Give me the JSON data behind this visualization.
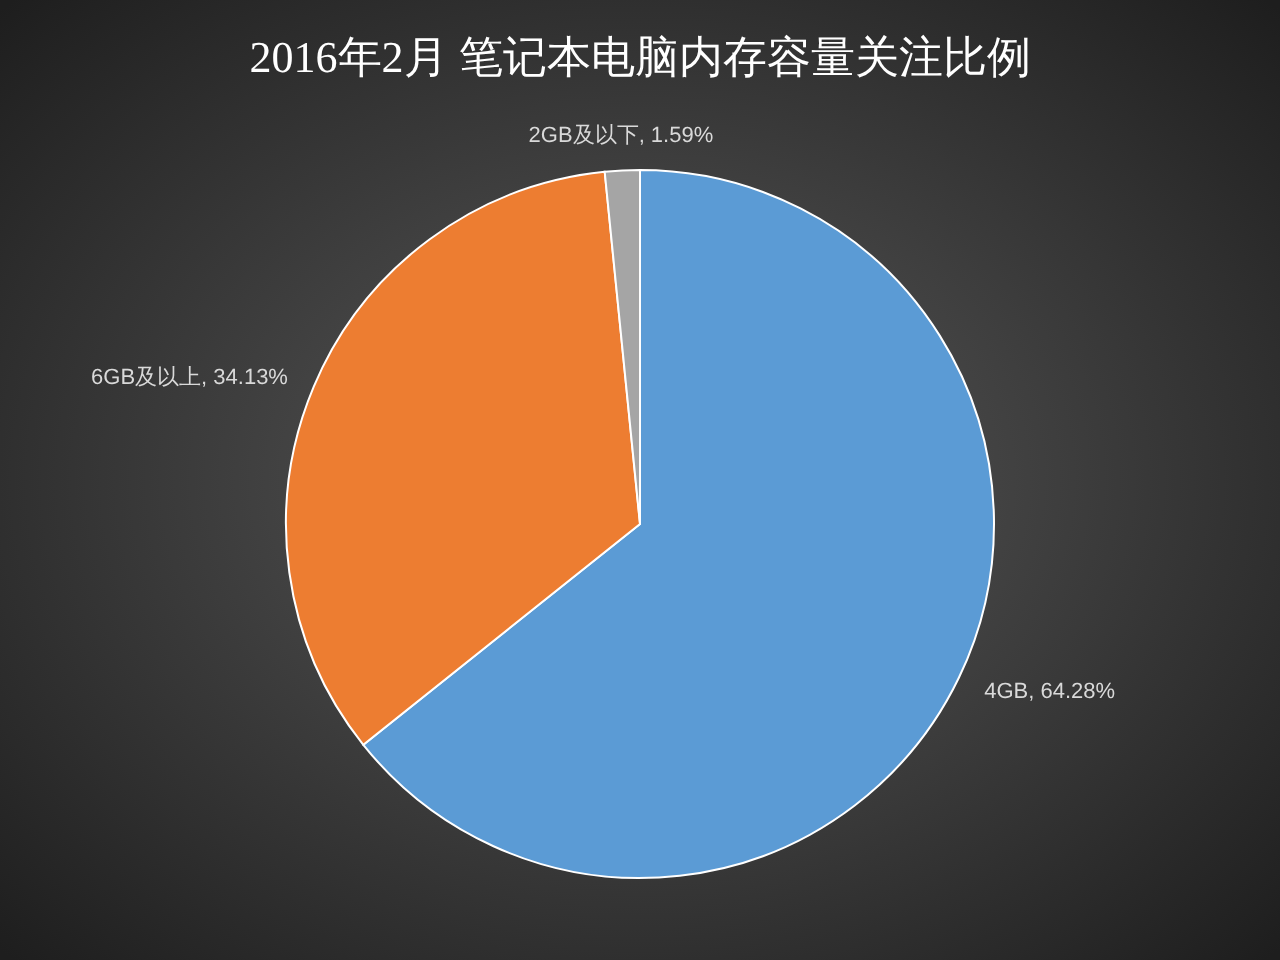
{
  "chart_data": {
    "type": "pie",
    "title": "2016年2月 笔记本电脑内存容量关注比例",
    "categories": [
      "4GB",
      "6GB及以上",
      "2GB及以下"
    ],
    "values": [
      64.28,
      34.13,
      1.59
    ],
    "colors": [
      "#5b9bd5",
      "#ed7d31",
      "#a5a5a5"
    ],
    "value_labels": [
      ", 64.28%",
      ", 34.13%",
      ", 1.59%"
    ],
    "legend": false
  }
}
